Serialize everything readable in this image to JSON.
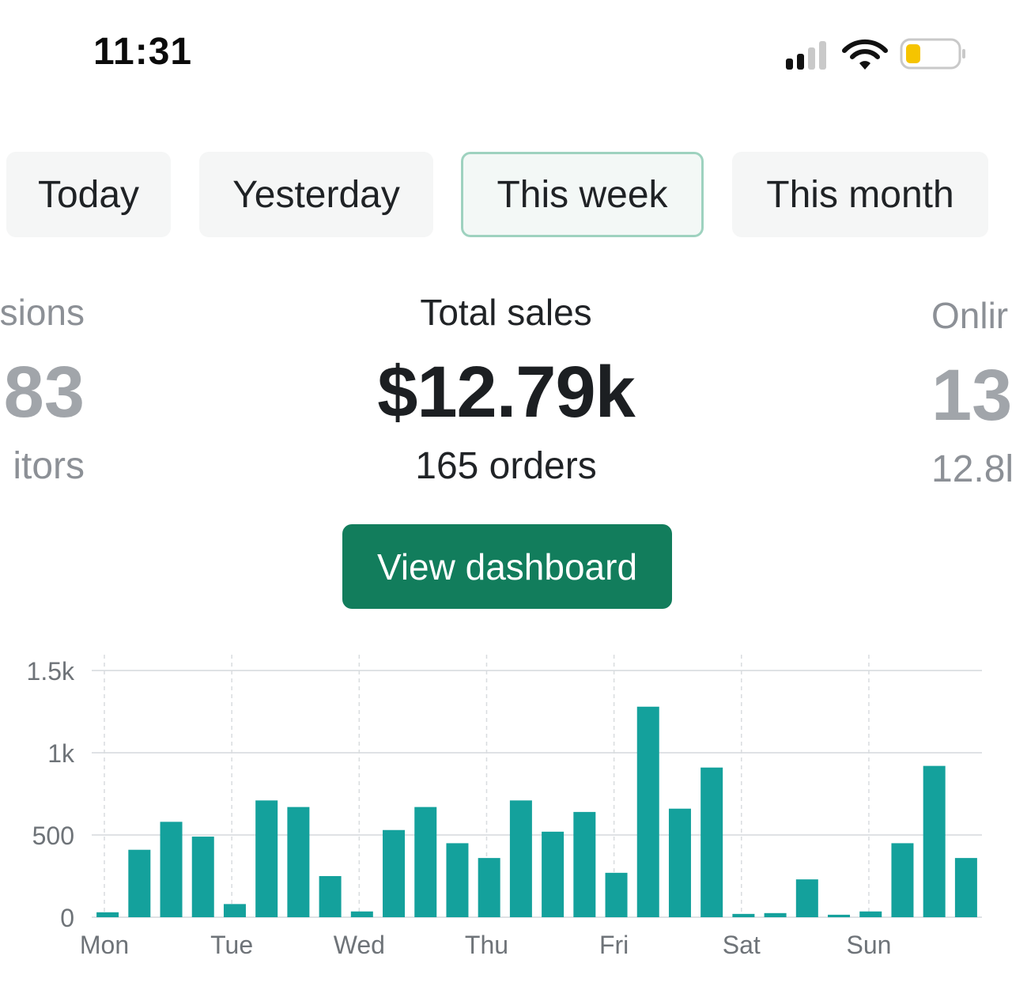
{
  "status_bar": {
    "time": "11:31",
    "icons": [
      "cellular-signal-icon",
      "wifi-icon",
      "battery-icon"
    ],
    "battery_color": "#f6c400"
  },
  "tabs": [
    {
      "label": "Today",
      "active": false
    },
    {
      "label": "Yesterday",
      "active": false
    },
    {
      "label": "This week",
      "active": true
    },
    {
      "label": "This month",
      "active": false
    }
  ],
  "metrics": {
    "left": {
      "label": "sions",
      "value": "83",
      "sub": "itors"
    },
    "center": {
      "label": "Total sales",
      "value": "$12.79k",
      "sub": "165 orders"
    },
    "right": {
      "label": "Onlir",
      "value": "13",
      "sub": "12.8l"
    }
  },
  "button": {
    "label": "View dashboard",
    "color": "#127d5c"
  },
  "chart_data": {
    "type": "bar",
    "x_labels": [
      "Mon",
      "Tue",
      "Wed",
      "Thu",
      "Fri",
      "Sat",
      "Sun"
    ],
    "y_ticks": [
      {
        "value": 0,
        "label": "0"
      },
      {
        "value": 500,
        "label": "500"
      },
      {
        "value": 1000,
        "label": "1k"
      },
      {
        "value": 1500,
        "label": "1.5k"
      }
    ],
    "ylim": [
      0,
      1500
    ],
    "bar_color": "#14a19c",
    "grid": true,
    "values": [
      30,
      410,
      580,
      490,
      80,
      710,
      670,
      250,
      35,
      530,
      670,
      450,
      360,
      710,
      520,
      640,
      270,
      1280,
      660,
      910,
      20,
      25,
      230,
      15,
      35,
      450,
      920,
      360
    ]
  }
}
